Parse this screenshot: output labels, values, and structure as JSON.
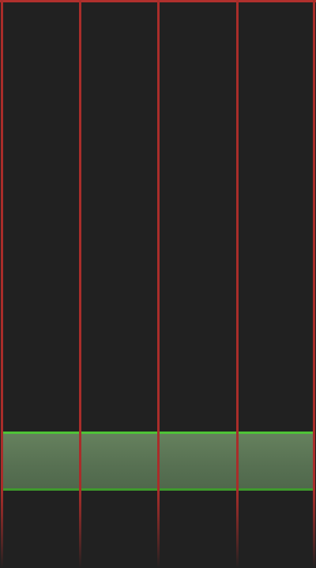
{
  "game": {
    "colors": {
      "background": "#212121",
      "lane_divider": "#a92d2a",
      "hit_zone_fill": "#5f7b58",
      "hit_zone_edge_top": "#4fc237",
      "hit_zone_edge_bottom": "#3f9a2c"
    },
    "lanes": [
      {
        "id": "lane-1"
      },
      {
        "id": "lane-2"
      },
      {
        "id": "lane-3"
      },
      {
        "id": "lane-4"
      }
    ],
    "hit_zone": {
      "lanes_covered": 4
    }
  }
}
